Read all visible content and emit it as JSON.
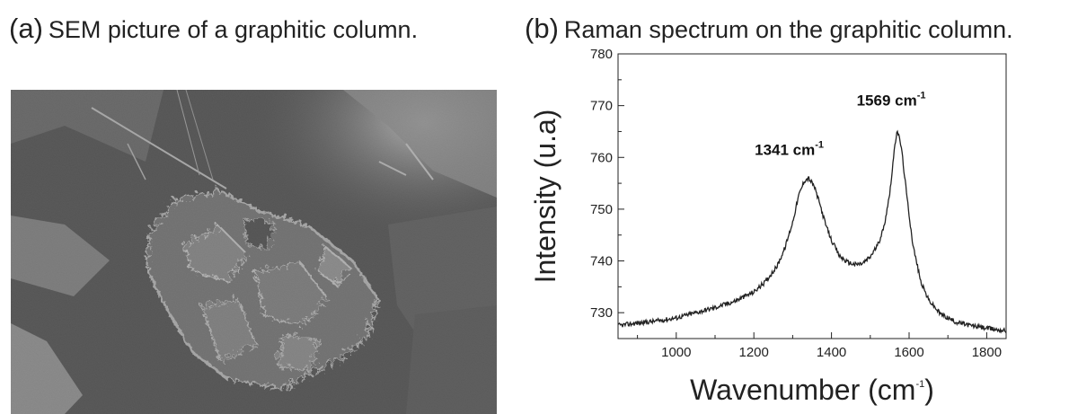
{
  "panel_a": {
    "tag": "(a)",
    "caption": "SEM picture of a graphitic column."
  },
  "panel_b": {
    "tag": "(b)",
    "caption": "Raman spectrum on the graphitic column."
  },
  "chart_data": {
    "type": "line",
    "xlabel": "Wavenumber (cm",
    "xlabel_sup": "-1",
    "xlabel_suffix": ")",
    "ylabel": "Intensity (u.a)",
    "xlim": [
      850,
      1850
    ],
    "ylim": [
      725,
      780
    ],
    "x_ticks": [
      1000,
      1200,
      1400,
      1600,
      1800
    ],
    "y_ticks": [
      730,
      740,
      750,
      760,
      770,
      780
    ],
    "annotations": [
      {
        "text": "1341 cm",
        "sup": "-1",
        "x": 1341,
        "y": 756
      },
      {
        "text": "1569 cm",
        "sup": "-1",
        "x": 1569,
        "y": 765.5
      }
    ],
    "series": [
      {
        "x": [
          850,
          900,
          950,
          1000,
          1050,
          1100,
          1150,
          1200,
          1230,
          1260,
          1280,
          1300,
          1315,
          1330,
          1341,
          1355,
          1370,
          1385,
          1400,
          1420,
          1440,
          1460,
          1480,
          1500,
          1520,
          1535,
          1550,
          1560,
          1569,
          1580,
          1595,
          1610,
          1630,
          1650,
          1680,
          1720,
          1760,
          1800,
          1850
        ],
        "values": [
          727.5,
          728.0,
          728.4,
          729.0,
          730.0,
          731.0,
          732.2,
          734.0,
          736.0,
          739.0,
          742.5,
          747.5,
          752.5,
          755.5,
          756.0,
          754.5,
          751.0,
          747.0,
          744.0,
          741.0,
          739.8,
          739.3,
          739.5,
          740.8,
          743.2,
          746.5,
          753.0,
          760.0,
          765.5,
          762.0,
          752.0,
          743.0,
          736.0,
          732.5,
          729.8,
          728.2,
          727.5,
          727.0,
          726.5
        ]
      }
    ]
  }
}
